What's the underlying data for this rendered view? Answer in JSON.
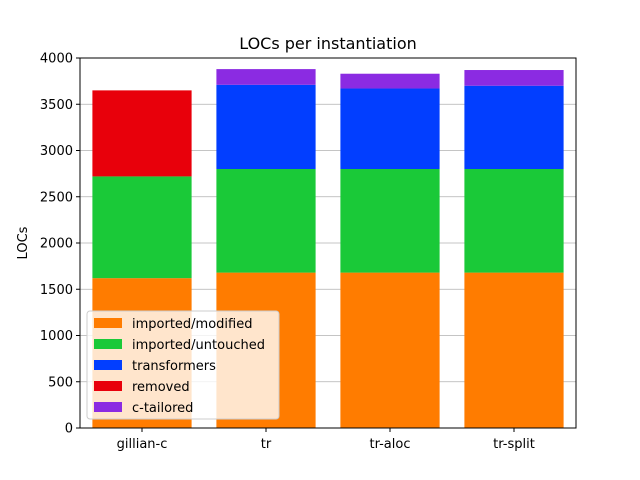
{
  "chart_data": {
    "type": "bar",
    "stacked": true,
    "title": "LOCs per instantiation",
    "xlabel": "",
    "ylabel": "LOCs",
    "categories": [
      "gillian-c",
      "tr",
      "tr-aloc",
      "tr-split"
    ],
    "ylim": [
      0,
      4000
    ],
    "yticks": [
      0,
      500,
      1000,
      1500,
      2000,
      2500,
      3000,
      3500,
      4000
    ],
    "grid": "horizontal",
    "legend_position": "lower-left",
    "series": [
      {
        "name": "imported/modified",
        "color": "#ff7c00",
        "values": [
          1620,
          1680,
          1680,
          1680
        ]
      },
      {
        "name": "imported/untouched",
        "color": "#1ac938",
        "values": [
          1100,
          1120,
          1120,
          1120
        ]
      },
      {
        "name": "transformers",
        "color": "#023eff",
        "values": [
          0,
          910,
          870,
          900
        ]
      },
      {
        "name": "removed",
        "color": "#e8000b",
        "values": [
          930,
          0,
          0,
          0
        ]
      },
      {
        "name": "c-tailored",
        "color": "#8b2be2",
        "values": [
          0,
          170,
          160,
          170
        ]
      }
    ]
  }
}
